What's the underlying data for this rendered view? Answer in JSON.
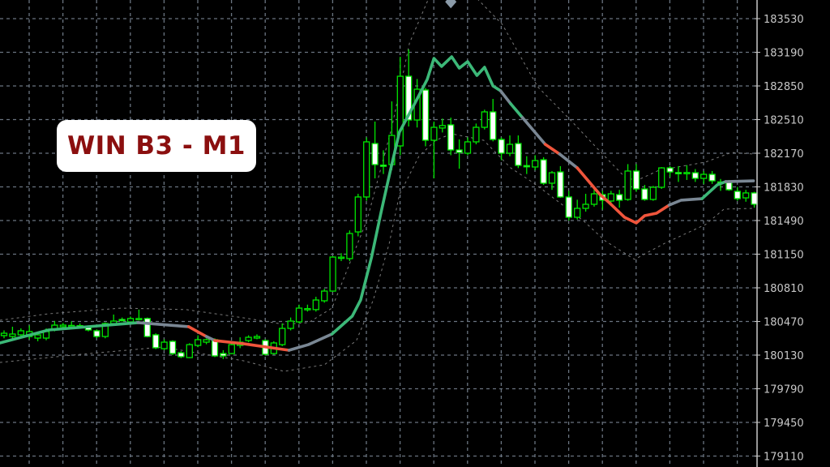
{
  "label": {
    "text": "WIN B3 - M1"
  },
  "colors": {
    "background": "#000000",
    "grid": "#6a7480",
    "axis": "#c8c8c8",
    "candle_outline": "#00e600",
    "bull_body": "#000000",
    "bear_body": "#ffffff",
    "band": "#7a7a7a",
    "ma_up": "#3cb878",
    "ma_flat": "#7a8794",
    "ma_down": "#f0553c",
    "marker": "#8a9aa8",
    "label_text": "#8b0f0f",
    "label_bg": "#ffffff"
  },
  "chart_data": {
    "type": "candlestick",
    "title": "WIN B3 - M1",
    "ylim": [
      179030,
      183720
    ],
    "grid": true,
    "yticks": [
      183530,
      183190,
      182850,
      182510,
      182170,
      181830,
      181490,
      181150,
      180810,
      180470,
      180130,
      179790,
      179450,
      179110
    ],
    "candle_fields": [
      "open",
      "high",
      "low",
      "close"
    ],
    "candles": [
      [
        180327,
        180380,
        180300,
        180351
      ],
      [
        180318,
        180417,
        180294,
        180343
      ],
      [
        180335,
        180400,
        180310,
        180376
      ],
      [
        180318,
        180430,
        180290,
        180368
      ],
      [
        180302,
        180360,
        180270,
        180335
      ],
      [
        180302,
        180400,
        180280,
        180368
      ],
      [
        180392,
        180475,
        180370,
        180433
      ],
      [
        180417,
        180455,
        180400,
        180433
      ],
      [
        180425,
        180470,
        180400,
        180430
      ],
      [
        180428,
        180450,
        180405,
        180425
      ],
      [
        180408,
        180430,
        180370,
        180384
      ],
      [
        180376,
        180390,
        180300,
        180318
      ],
      [
        180318,
        180460,
        180300,
        180449
      ],
      [
        180449,
        180540,
        180440,
        180474
      ],
      [
        180490,
        180510,
        180470,
        180485
      ],
      [
        180466,
        180520,
        180450,
        180500
      ],
      [
        180495,
        180590,
        180480,
        180500
      ],
      [
        180500,
        180510,
        180310,
        180318
      ],
      [
        180335,
        180350,
        180190,
        180204
      ],
      [
        180195,
        180290,
        180180,
        180261
      ],
      [
        180269,
        180280,
        180130,
        180146
      ],
      [
        180154,
        180170,
        180100,
        180114
      ],
      [
        180105,
        180250,
        180100,
        180236
      ],
      [
        180228,
        180330,
        180210,
        180286
      ],
      [
        180261,
        180300,
        180240,
        180286
      ],
      [
        180286,
        180300,
        180110,
        180122
      ],
      [
        180146,
        180180,
        180090,
        180122
      ],
      [
        180146,
        180250,
        180140,
        180236
      ],
      [
        180228,
        180310,
        180200,
        180261
      ],
      [
        180277,
        180330,
        180260,
        180310
      ],
      [
        180302,
        180340,
        180290,
        180318
      ],
      [
        180277,
        180290,
        180125,
        180138
      ],
      [
        180146,
        180270,
        180135,
        180253
      ],
      [
        180236,
        180450,
        180220,
        180400
      ],
      [
        180400,
        180510,
        180380,
        180474
      ],
      [
        180466,
        180640,
        180450,
        180605
      ],
      [
        180595,
        180640,
        180570,
        180600
      ],
      [
        180590,
        180720,
        180570,
        180687
      ],
      [
        180679,
        180800,
        180660,
        180777
      ],
      [
        180777,
        181130,
        180770,
        181121
      ],
      [
        181110,
        181160,
        181080,
        181120
      ],
      [
        181105,
        181390,
        181080,
        181359
      ],
      [
        181375,
        181760,
        181330,
        181728
      ],
      [
        181728,
        182330,
        181690,
        182285
      ],
      [
        182268,
        182490,
        181916,
        182055
      ],
      [
        182050,
        182200,
        181960,
        182045
      ],
      [
        182055,
        182694,
        182000,
        182350
      ],
      [
        182244,
        183145,
        182150,
        182948
      ],
      [
        182948,
        183219,
        182440,
        182506
      ],
      [
        182506,
        182920,
        182430,
        182817
      ],
      [
        182809,
        182830,
        182240,
        182301
      ],
      [
        182301,
        182490,
        181916,
        182432
      ],
      [
        182425,
        182520,
        182380,
        182450
      ],
      [
        182457,
        182530,
        182150,
        182203
      ],
      [
        182203,
        182310,
        182014,
        182178
      ],
      [
        182170,
        182330,
        182150,
        182285
      ],
      [
        182285,
        182470,
        182260,
        182432
      ],
      [
        182432,
        182610,
        182410,
        182588
      ],
      [
        182588,
        182719,
        182290,
        182309
      ],
      [
        182309,
        182330,
        182100,
        182170
      ],
      [
        182170,
        182350,
        182140,
        182260
      ],
      [
        182268,
        182350,
        182020,
        182047
      ],
      [
        182045,
        182140,
        181960,
        182035
      ],
      [
        182031,
        182150,
        182000,
        182096
      ],
      [
        182104,
        182130,
        181850,
        181867
      ],
      [
        181867,
        181990,
        181800,
        181973
      ],
      [
        181981,
        182040,
        181720,
        181728
      ],
      [
        181728,
        181790,
        181490,
        181523
      ],
      [
        181523,
        181700,
        181500,
        181613
      ],
      [
        181613,
        181760,
        181580,
        181654
      ],
      [
        181654,
        181800,
        181630,
        181760
      ],
      [
        181752,
        181790,
        181600,
        181695
      ],
      [
        181687,
        181790,
        181660,
        181760
      ],
      [
        181752,
        181800,
        181620,
        181695
      ],
      [
        181703,
        182060,
        181690,
        181990
      ],
      [
        181990,
        182060,
        181780,
        181809
      ],
      [
        181809,
        181850,
        181690,
        181703
      ],
      [
        181703,
        181840,
        181690,
        181826
      ],
      [
        181826,
        182030,
        181810,
        182022
      ],
      [
        182022,
        182040,
        181930,
        181981
      ],
      [
        181975,
        182040,
        181880,
        181970
      ],
      [
        181970,
        182050,
        181900,
        181975
      ],
      [
        181973,
        182010,
        181880,
        181916
      ],
      [
        181916,
        181990,
        181860,
        181957
      ],
      [
        181957,
        181990,
        181860,
        181891
      ],
      [
        181880,
        181910,
        181790,
        181875
      ],
      [
        181875,
        181900,
        181790,
        181801
      ],
      [
        181785,
        181830,
        181690,
        181711
      ],
      [
        181719,
        181800,
        181680,
        181769
      ],
      [
        181769,
        181780,
        181620,
        181654
      ]
    ],
    "moving_average_segments": [
      {
        "trend": "up",
        "points": [
          [
            -0.5,
            180253
          ],
          [
            5.3,
            180384
          ],
          [
            11.1,
            180425
          ],
          [
            15.9,
            180458
          ]
        ]
      },
      {
        "trend": "flat",
        "points": [
          [
            15.9,
            180458
          ],
          [
            21.9,
            180417
          ]
        ]
      },
      {
        "trend": "down",
        "points": [
          [
            21.9,
            180417
          ],
          [
            24.0,
            180318
          ]
        ]
      },
      {
        "trend": "flat",
        "points": [
          [
            24.0,
            180318
          ],
          [
            25.0,
            180277
          ]
        ]
      },
      {
        "trend": "down",
        "points": [
          [
            25.0,
            180277
          ],
          [
            28.4,
            180245
          ],
          [
            33.8,
            180179
          ]
        ]
      },
      {
        "trend": "flat",
        "points": [
          [
            33.8,
            180179
          ],
          [
            36.1,
            180236
          ],
          [
            38.9,
            180343
          ]
        ]
      },
      {
        "trend": "up",
        "points": [
          [
            38.9,
            180343
          ],
          [
            41.3,
            180523
          ],
          [
            42.3,
            180687
          ],
          [
            43.6,
            181121
          ],
          [
            44.7,
            181564
          ],
          [
            45.9,
            182022
          ],
          [
            46.9,
            182383
          ],
          [
            48.6,
            182653
          ],
          [
            50.2,
            182916
          ],
          [
            51.0,
            183129
          ],
          [
            51.9,
            183047
          ],
          [
            53.1,
            183145
          ],
          [
            54.0,
            183030
          ],
          [
            55.0,
            183096
          ],
          [
            56.1,
            182956
          ],
          [
            57.0,
            183039
          ],
          [
            58.0,
            182850
          ],
          [
            58.9,
            182801
          ]
        ]
      },
      {
        "trend": "flat",
        "points": [
          [
            58.9,
            182801
          ],
          [
            60.1,
            182670
          ]
        ]
      },
      {
        "trend": "up",
        "points": [
          [
            60.1,
            182670
          ],
          [
            61.5,
            182530
          ]
        ]
      },
      {
        "trend": "flat",
        "points": [
          [
            61.5,
            182530
          ],
          [
            64.2,
            182260
          ]
        ]
      },
      {
        "trend": "down",
        "points": [
          [
            64.2,
            182260
          ],
          [
            65.9,
            182162
          ]
        ]
      },
      {
        "trend": "flat",
        "points": [
          [
            65.9,
            182162
          ],
          [
            68.0,
            182022
          ]
        ]
      },
      {
        "trend": "down",
        "points": [
          [
            68.0,
            182022
          ],
          [
            70.7,
            181752
          ],
          [
            71.8,
            181670
          ],
          [
            73.6,
            181523
          ],
          [
            75.0,
            181465
          ],
          [
            76.0,
            181539
          ],
          [
            77.4,
            181564
          ],
          [
            78.9,
            181646
          ]
        ]
      },
      {
        "trend": "flat",
        "points": [
          [
            78.9,
            181646
          ],
          [
            80.3,
            181695
          ],
          [
            82.8,
            181711
          ]
        ]
      },
      {
        "trend": "up",
        "points": [
          [
            82.8,
            181711
          ],
          [
            84.6,
            181850
          ],
          [
            85.6,
            181883
          ]
        ]
      },
      {
        "trend": "flat",
        "points": [
          [
            85.6,
            181883
          ],
          [
            88.9,
            181891
          ]
        ]
      }
    ],
    "bands": {
      "upper": [
        [
          -0.5,
          180482
        ],
        [
          5.3,
          180548
        ],
        [
          13.9,
          180605
        ],
        [
          21.6,
          180590
        ],
        [
          28.4,
          180507
        ],
        [
          33.2,
          180441
        ],
        [
          36.1,
          180458
        ],
        [
          38.9,
          180605
        ],
        [
          43.1,
          181506
        ],
        [
          46.0,
          182432
        ],
        [
          48.1,
          183284
        ],
        [
          50.5,
          183760
        ],
        [
          55.8,
          183760
        ],
        [
          59.1,
          183473
        ],
        [
          63.3,
          182842
        ],
        [
          67.1,
          182514
        ],
        [
          71.0,
          182162
        ],
        [
          73.8,
          181916
        ],
        [
          75.2,
          181900
        ],
        [
          77.7,
          181998
        ],
        [
          83.2,
          182080
        ],
        [
          86.3,
          182178
        ],
        [
          88.9,
          182162
        ]
      ],
      "lower": [
        [
          -0.5,
          180056
        ],
        [
          9.1,
          180138
        ],
        [
          18.8,
          180212
        ],
        [
          28.4,
          180073
        ],
        [
          33.2,
          179966
        ],
        [
          38.0,
          180032
        ],
        [
          41.8,
          180277
        ],
        [
          43.8,
          180687
        ],
        [
          45.7,
          181261
        ],
        [
          46.9,
          181752
        ],
        [
          49.2,
          182137
        ],
        [
          51.2,
          182301
        ],
        [
          53.1,
          182367
        ],
        [
          56.9,
          182301
        ],
        [
          60.1,
          182022
        ],
        [
          63.0,
          181859
        ],
        [
          68.8,
          181482
        ],
        [
          71.3,
          181285
        ],
        [
          74.8,
          181097
        ],
        [
          78.4,
          181261
        ],
        [
          83.2,
          181449
        ],
        [
          85.4,
          181605
        ],
        [
          88.9,
          181613
        ]
      ]
    },
    "marker": {
      "shape": "diamond",
      "index": 53,
      "price": 183700
    }
  }
}
